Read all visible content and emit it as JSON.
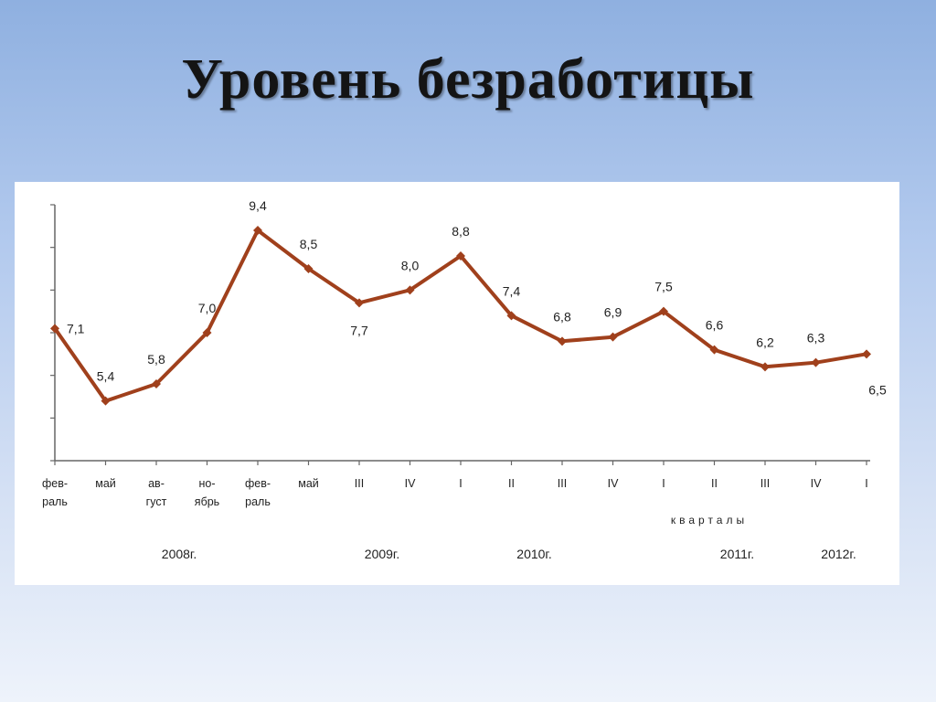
{
  "title": "Уровень безработицы",
  "chart_data": {
    "type": "line",
    "color": "#a0401c",
    "ylim": [
      4,
      10
    ],
    "points": [
      {
        "x": [
          "фев-",
          "раль"
        ],
        "value": 7.1,
        "label": "7,1"
      },
      {
        "x": [
          "май"
        ],
        "value": 5.4,
        "label": "5,4"
      },
      {
        "x": [
          "ав-",
          "густ"
        ],
        "value": 5.8,
        "label": "5,8"
      },
      {
        "x": [
          "но-",
          "ябрь"
        ],
        "value": 7.0,
        "label": "7,0"
      },
      {
        "x": [
          "фев-",
          "раль"
        ],
        "value": 9.4,
        "label": "9,4"
      },
      {
        "x": [
          "май"
        ],
        "value": 8.5,
        "label": "8,5"
      },
      {
        "x": [
          "III"
        ],
        "value": 7.7,
        "label": "7,7"
      },
      {
        "x": [
          "IV"
        ],
        "value": 8.0,
        "label": "8,0"
      },
      {
        "x": [
          "I"
        ],
        "value": 8.8,
        "label": "8,8"
      },
      {
        "x": [
          "II"
        ],
        "value": 7.4,
        "label": "7,4"
      },
      {
        "x": [
          "III"
        ],
        "value": 6.8,
        "label": "6,8"
      },
      {
        "x": [
          "IV"
        ],
        "value": 6.9,
        "label": "6,9"
      },
      {
        "x": [
          "I"
        ],
        "value": 7.5,
        "label": "7,5"
      },
      {
        "x": [
          "II"
        ],
        "value": 6.6,
        "label": "6,6"
      },
      {
        "x": [
          "III"
        ],
        "value": 6.2,
        "label": "6,2"
      },
      {
        "x": [
          "IV"
        ],
        "value": 6.3,
        "label": "6,3"
      },
      {
        "x": [
          "I"
        ],
        "value": 6.5,
        "label": "6,5"
      }
    ],
    "axis_note": "кварталы",
    "years": [
      {
        "label": "2008г.",
        "under_point": 2
      },
      {
        "label": "2009г.",
        "under_point": 6
      },
      {
        "label": "2010г.",
        "under_point": 9
      },
      {
        "label": "2011г.",
        "under_point": 13
      },
      {
        "label": "2012г.",
        "under_point": 15
      }
    ]
  }
}
